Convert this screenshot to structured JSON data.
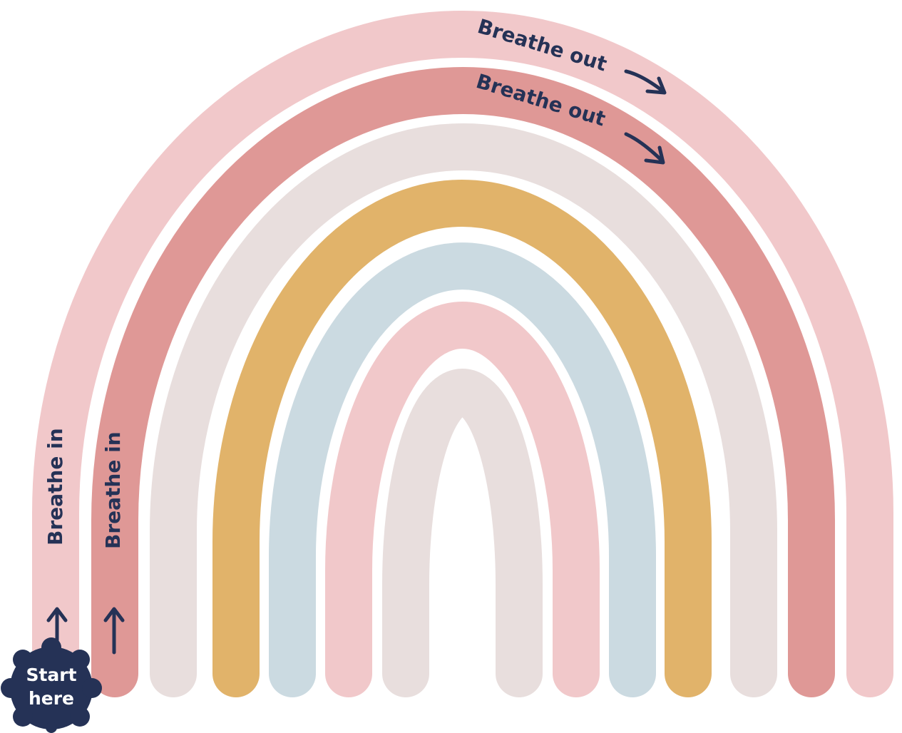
{
  "labels": {
    "breathe_out_outer": "Breathe out",
    "breathe_out_inner": "Breathe out",
    "breathe_in_outer": "Breathe in",
    "breathe_in_inner": "Breathe in"
  },
  "badge": {
    "line1": "Start",
    "line2": "here"
  }
}
